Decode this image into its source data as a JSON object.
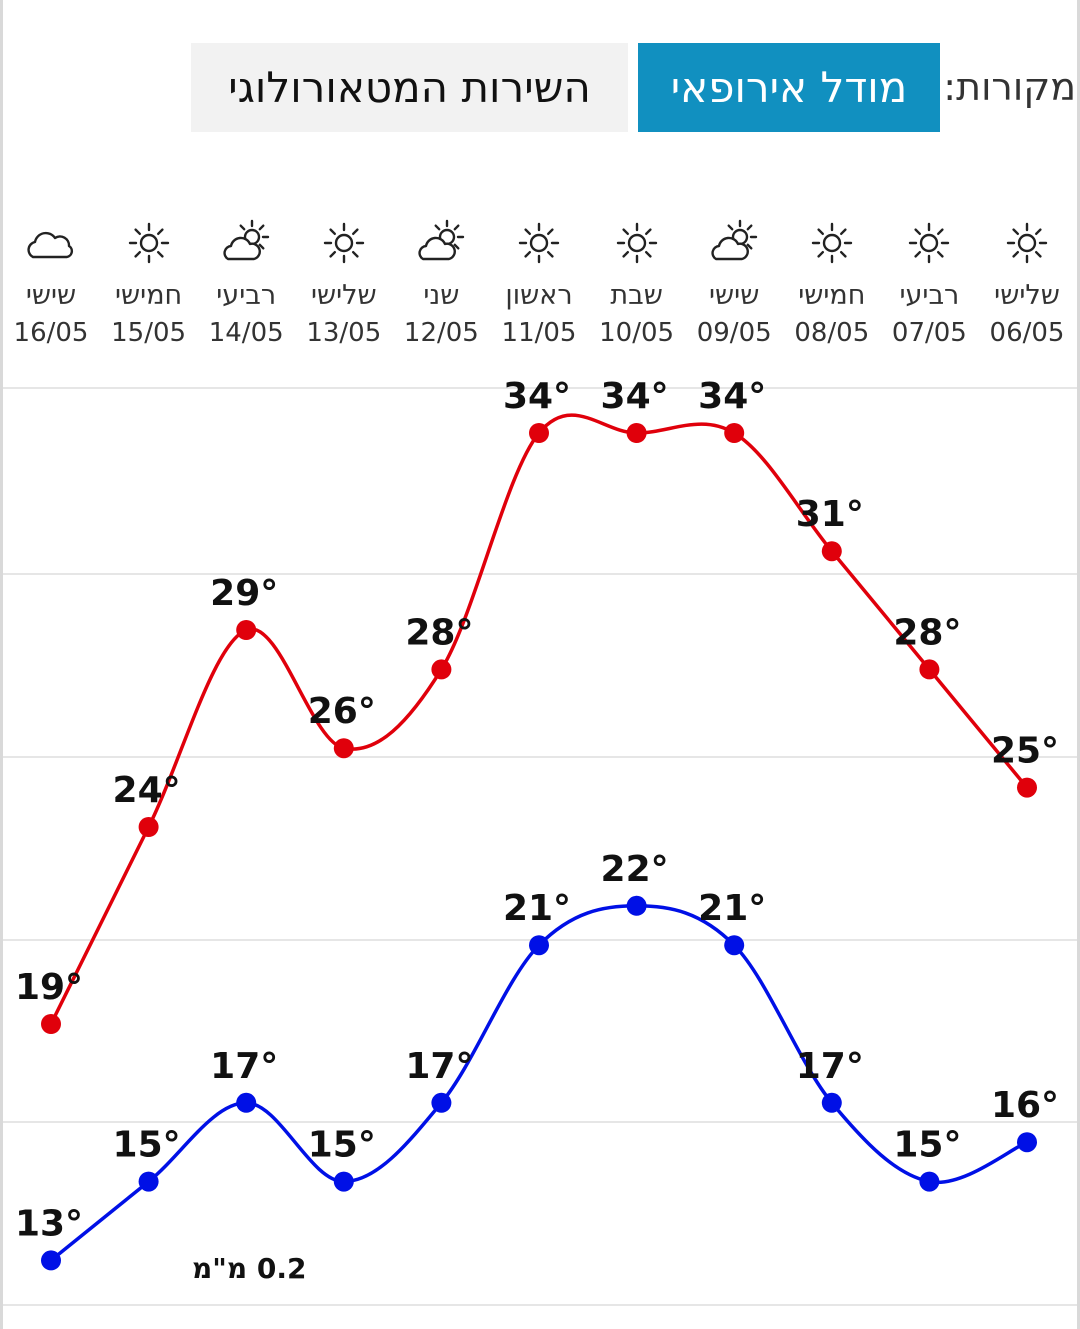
{
  "sources": {
    "label": "מקורות:",
    "tabs": [
      {
        "label": "מודל אירופאי",
        "active": true
      },
      {
        "label": "השירות המטאורולוגי",
        "active": false
      }
    ]
  },
  "colors": {
    "accent": "#1190c0",
    "max_series": "#e0000b",
    "min_series": "#0010e6"
  },
  "days": [
    {
      "name": "שלישי",
      "date": "06/05",
      "icon": "sun-icon"
    },
    {
      "name": "רביעי",
      "date": "07/05",
      "icon": "sun-icon"
    },
    {
      "name": "חמישי",
      "date": "08/05",
      "icon": "sun-icon"
    },
    {
      "name": "שישי",
      "date": "09/05",
      "icon": "partly-cloudy-icon"
    },
    {
      "name": "שבת",
      "date": "10/05",
      "icon": "sun-icon"
    },
    {
      "name": "ראשון",
      "date": "11/05",
      "icon": "sun-icon"
    },
    {
      "name": "שני",
      "date": "12/05",
      "icon": "partly-cloudy-icon"
    },
    {
      "name": "שלישי",
      "date": "13/05",
      "icon": "sun-icon"
    },
    {
      "name": "רביעי",
      "date": "14/05",
      "icon": "partly-cloudy-icon"
    },
    {
      "name": "חמישי",
      "date": "15/05",
      "icon": "sun-icon"
    },
    {
      "name": "שישי",
      "date": "16/05",
      "icon": "cloud-icon"
    }
  ],
  "chart_data": {
    "type": "line",
    "categories": [
      "06/05",
      "07/05",
      "08/05",
      "09/05",
      "10/05",
      "11/05",
      "12/05",
      "13/05",
      "14/05",
      "15/05",
      "16/05"
    ],
    "series": [
      {
        "values": [
          25,
          28,
          31,
          34,
          34,
          34,
          28,
          26,
          29,
          24,
          19
        ]
      },
      {
        "values": [
          16,
          15,
          17,
          21,
          22,
          21,
          17,
          15,
          17,
          15,
          13
        ]
      }
    ],
    "label_suffix": "°",
    "x_direction": "right-to-left",
    "grid": true
  },
  "precipitation": {
    "label": "0.2 מ\"מ"
  }
}
